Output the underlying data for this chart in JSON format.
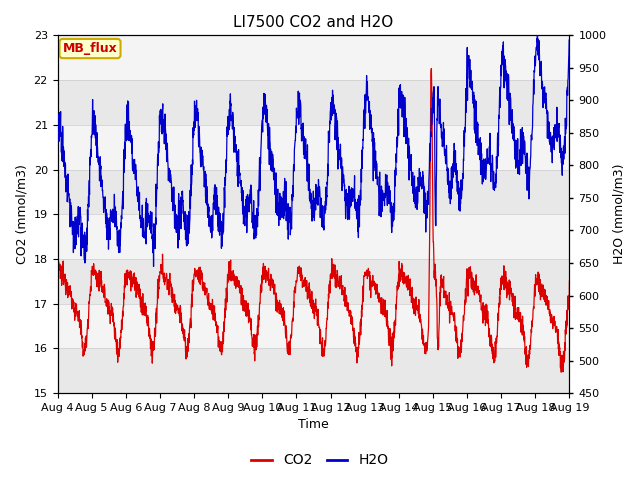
{
  "title": "LI7500 CO2 and H2O",
  "xlabel": "Time",
  "ylabel_left": "CO2 (mmol/m3)",
  "ylabel_right": "H2O (mmol/m3)",
  "xlim": [
    0,
    15
  ],
  "ylim_left": [
    15.0,
    23.0
  ],
  "ylim_right": [
    450,
    1000
  ],
  "yticks_left": [
    15.0,
    16.0,
    17.0,
    18.0,
    19.0,
    20.0,
    21.0,
    22.0,
    23.0
  ],
  "yticks_right": [
    450,
    500,
    550,
    600,
    650,
    700,
    750,
    800,
    850,
    900,
    950,
    1000
  ],
  "xtick_labels": [
    "Aug 4",
    "Aug 5",
    "Aug 6",
    "Aug 7",
    "Aug 8",
    "Aug 9",
    "Aug 10",
    "Aug 11",
    "Aug 12",
    "Aug 13",
    "Aug 14",
    "Aug 15",
    "Aug 16",
    "Aug 17",
    "Aug 18",
    "Aug 19"
  ],
  "label_box_text": "MB_flux",
  "label_box_facecolor": "#ffffcc",
  "label_box_edgecolor": "#ccaa00",
  "label_box_textcolor": "#cc0000",
  "co2_color": "#dd0000",
  "h2o_color": "#0000cc",
  "fig_bg_color": "#ffffff",
  "plot_bg_color": "#ffffff",
  "band_color_dark": "#e8e8e8",
  "band_color_light": "#f4f4f4",
  "grid_color": "#d0d0d0",
  "legend_co2": "CO2",
  "legend_h2o": "H2O",
  "title_fontsize": 11,
  "axis_label_fontsize": 9,
  "tick_fontsize": 8
}
